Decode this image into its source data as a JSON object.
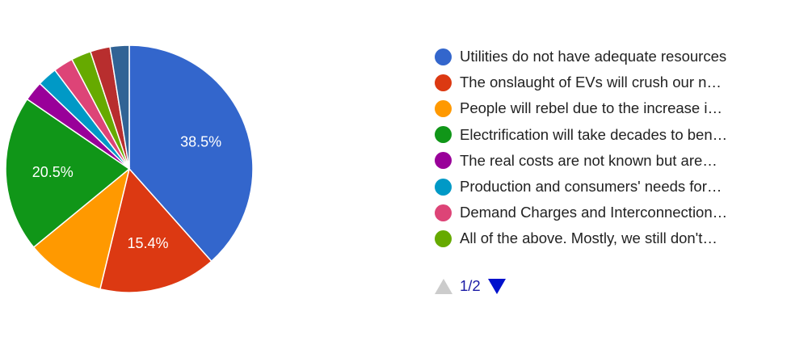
{
  "chart_data": {
    "type": "pie",
    "start_angle_deg": 90,
    "direction": "clockwise",
    "slices": [
      {
        "label": "Utilities do not have adequate resources",
        "value": 38.5,
        "color": "#3366cc",
        "data_label": "38.5%"
      },
      {
        "label": "The onslaught of EVs will crush our n…",
        "value": 15.4,
        "color": "#dc3912",
        "data_label": "15.4%"
      },
      {
        "label": "People will rebel due to the increase i…",
        "value": 10.3,
        "color": "#ff9900",
        "data_label": ""
      },
      {
        "label": "Electrification will take decades to ben…",
        "value": 20.5,
        "color": "#109618",
        "data_label": "20.5%"
      },
      {
        "label": "The real costs are not known but are…",
        "value": 2.6,
        "color": "#990099",
        "data_label": ""
      },
      {
        "label": "Production and consumers' needs for…",
        "value": 2.6,
        "color": "#0099c6",
        "data_label": ""
      },
      {
        "label": "Demand Charges and Interconnection…",
        "value": 2.6,
        "color": "#dd4477",
        "data_label": ""
      },
      {
        "label": "All of the above. Mostly, we still don't…",
        "value": 2.6,
        "color": "#66aa00",
        "data_label": ""
      },
      {
        "label": "",
        "value": 2.6,
        "color": "#b82e2e",
        "data_label": ""
      },
      {
        "label": "",
        "value": 2.5,
        "color": "#316395",
        "data_label": ""
      }
    ],
    "legend_position": "right",
    "legend_visible_count": 8
  },
  "pager": {
    "text": "1/2",
    "up_icon": "triangle-up-icon",
    "down_icon": "triangle-down-icon"
  }
}
